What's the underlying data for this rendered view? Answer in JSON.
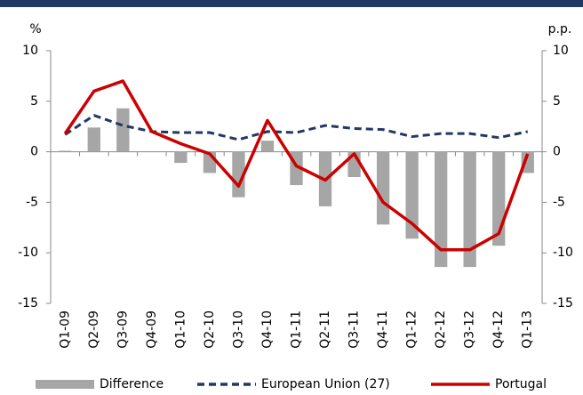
{
  "chart_data": {
    "type": "bar-line",
    "ylabel": "%",
    "y2label": "p.p.",
    "categories": [
      "Q1-09",
      "Q2-09",
      "Q3-09",
      "Q4-09",
      "Q1-10",
      "Q2-10",
      "Q3-10",
      "Q4-10",
      "Q1-11",
      "Q2-11",
      "Q3-11",
      "Q4-11",
      "Q1-12",
      "Q2-12",
      "Q3-12",
      "Q4-12",
      "Q1-13"
    ],
    "ylim": [
      -15,
      10
    ],
    "yticks": [
      -15,
      -10,
      -5,
      0,
      5,
      10
    ],
    "y2lim": [
      -15,
      10
    ],
    "y2ticks": [
      -15,
      -10,
      -5,
      0,
      5,
      10
    ],
    "series": [
      {
        "name": "Difference",
        "kind": "bar",
        "axis": "y2",
        "color": "#a6a6a6",
        "values": [
          0.1,
          2.4,
          4.3,
          0,
          -1.1,
          -2.1,
          -4.5,
          1.1,
          -3.3,
          -5.4,
          -2.5,
          -7.2,
          -8.6,
          -11.4,
          -11.4,
          -9.3,
          -2.1
        ]
      },
      {
        "name": "European Union (27)",
        "kind": "dashed-line",
        "color": "#1f3864",
        "values": [
          1.7,
          3.6,
          2.6,
          2.0,
          1.9,
          1.9,
          1.2,
          2.0,
          1.9,
          2.6,
          2.3,
          2.2,
          1.5,
          1.8,
          1.8,
          1.4,
          2.0
        ]
      },
      {
        "name": "Portugal",
        "kind": "line",
        "color": "#cc0000",
        "values": [
          1.8,
          6.0,
          7.0,
          2.0,
          0.8,
          -0.2,
          -3.4,
          3.1,
          -1.4,
          -2.8,
          -0.2,
          -5.0,
          -7.1,
          -9.7,
          -9.7,
          -8.1,
          -0.2
        ]
      }
    ]
  }
}
